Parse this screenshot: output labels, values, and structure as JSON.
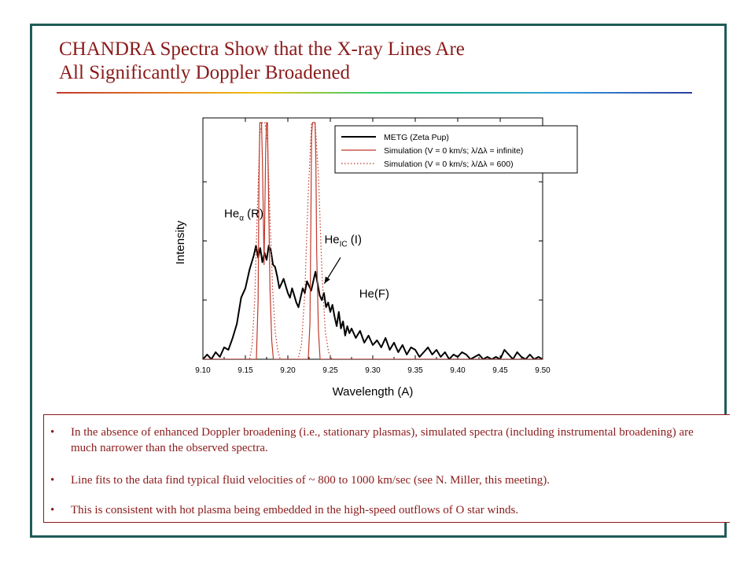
{
  "slide": {
    "title_line1": "CHANDRA Spectra Show that the X-ray Lines Are",
    "title_line2": "All Significantly Doppler Broadened",
    "bullets": [
      "In the absence of enhanced Doppler broadening (i.e., stationary plasmas), simulated spectra (including instrumental broadening) are much narrower than the observed spectra.",
      "Line fits to the data find typical fluid velocities of ~ 800 to 1000 km/sec (see N. Miller, this meeting).",
      "This is consistent with hot plasma being embedded in the high-speed outflows of O star winds."
    ],
    "bullet_marker": "•",
    "colors": {
      "title": "#8b1a1a",
      "frame": "#1f5c57",
      "bullet_text": "#8b1a1a"
    }
  },
  "chart_data": {
    "type": "line",
    "xlabel": "Wavelength (A)",
    "ylabel": "Intensity",
    "xlim": [
      9.1,
      9.5
    ],
    "ylim": [
      0,
      1
    ],
    "xticks": [
      "9.10",
      "9.15",
      "9.20",
      "9.25",
      "9.30",
      "9.35",
      "9.40",
      "9.45",
      "9.50"
    ],
    "legend_position": "top-right",
    "series": [
      {
        "name": "METG (Zeta Pup)",
        "color": "#000000",
        "style": "solid",
        "x": [
          9.1,
          9.105,
          9.11,
          9.115,
          9.12,
          9.125,
          9.13,
          9.135,
          9.14,
          9.145,
          9.15,
          9.155,
          9.16,
          9.1625,
          9.165,
          9.1675,
          9.17,
          9.1725,
          9.175,
          9.1775,
          9.18,
          9.1825,
          9.185,
          9.1875,
          9.19,
          9.1925,
          9.195,
          9.1975,
          9.2,
          9.2025,
          9.205,
          9.2075,
          9.21,
          9.2125,
          9.215,
          9.2175,
          9.22,
          9.2225,
          9.225,
          9.2275,
          9.23,
          9.2325,
          9.235,
          9.2375,
          9.24,
          9.2425,
          9.245,
          9.2475,
          9.25,
          9.2525,
          9.255,
          9.2575,
          9.26,
          9.2625,
          9.265,
          9.2675,
          9.27,
          9.2725,
          9.275,
          9.28,
          9.285,
          9.29,
          9.295,
          9.3,
          9.305,
          9.31,
          9.315,
          9.32,
          9.325,
          9.33,
          9.335,
          9.34,
          9.345,
          9.35,
          9.355,
          9.36,
          9.365,
          9.37,
          9.375,
          9.38,
          9.385,
          9.39,
          9.395,
          9.4,
          9.405,
          9.41,
          9.415,
          9.42,
          9.425,
          9.43,
          9.435,
          9.44,
          9.445,
          9.45,
          9.455,
          9.46,
          9.465,
          9.47,
          9.475,
          9.48,
          9.485,
          9.49,
          9.495,
          9.5
        ],
        "values": [
          0.0,
          0.02,
          0.0,
          0.03,
          0.01,
          0.05,
          0.04,
          0.09,
          0.15,
          0.26,
          0.3,
          0.38,
          0.44,
          0.48,
          0.43,
          0.47,
          0.41,
          0.45,
          0.42,
          0.48,
          0.46,
          0.4,
          0.39,
          0.35,
          0.3,
          0.32,
          0.34,
          0.31,
          0.28,
          0.26,
          0.3,
          0.27,
          0.24,
          0.22,
          0.26,
          0.3,
          0.28,
          0.33,
          0.31,
          0.29,
          0.33,
          0.37,
          0.32,
          0.27,
          0.25,
          0.28,
          0.22,
          0.24,
          0.2,
          0.23,
          0.18,
          0.14,
          0.2,
          0.13,
          0.16,
          0.1,
          0.14,
          0.11,
          0.13,
          0.09,
          0.12,
          0.07,
          0.1,
          0.06,
          0.08,
          0.05,
          0.09,
          0.04,
          0.07,
          0.03,
          0.06,
          0.02,
          0.05,
          0.04,
          0.01,
          0.03,
          0.05,
          0.02,
          0.04,
          0.01,
          0.03,
          0.0,
          0.02,
          0.01,
          0.03,
          0.02,
          0.0,
          0.01,
          0.02,
          0.0,
          0.01,
          0.0,
          0.01,
          0.0,
          0.04,
          0.02,
          0.0,
          0.03,
          0.01,
          0.0,
          0.02,
          0.0,
          0.01,
          0.0
        ]
      },
      {
        "name": "Simulation (V = 0 km/s;  λ/Δλ = infinite)",
        "color": "#c0392b",
        "style": "solid",
        "x": [
          9.1,
          9.163,
          9.165,
          9.166,
          9.167,
          9.169,
          9.17,
          9.172,
          9.174,
          9.175,
          9.176,
          9.177,
          9.179,
          9.181,
          9.183,
          9.224,
          9.226,
          9.227,
          9.228,
          9.229,
          9.23,
          9.231,
          9.232,
          9.233,
          9.234,
          9.236,
          9.238,
          9.5
        ],
        "values": [
          0.0,
          0.0,
          0.25,
          0.75,
          1.0,
          1.0,
          0.85,
          0.4,
          0.9,
          1.0,
          1.0,
          0.75,
          0.3,
          0.08,
          0.0,
          0.0,
          0.15,
          0.55,
          0.95,
          1.0,
          1.0,
          1.0,
          1.0,
          0.85,
          0.45,
          0.12,
          0.0,
          0.0
        ]
      },
      {
        "name": "Simulation (V = 0 km/s;  λ/Δλ = 600)",
        "color": "#c0392b",
        "style": "dotted",
        "x": [
          9.1,
          9.155,
          9.158,
          9.161,
          9.164,
          9.167,
          9.17,
          9.173,
          9.176,
          9.179,
          9.182,
          9.185,
          9.188,
          9.191,
          9.212,
          9.216,
          9.22,
          9.224,
          9.228,
          9.232,
          9.236,
          9.24,
          9.244,
          9.248,
          9.252,
          9.5
        ],
        "values": [
          0.0,
          0.0,
          0.06,
          0.25,
          0.62,
          0.95,
          1.0,
          1.0,
          0.92,
          0.6,
          0.3,
          0.12,
          0.04,
          0.0,
          0.0,
          0.06,
          0.28,
          0.7,
          1.0,
          1.0,
          0.78,
          0.38,
          0.12,
          0.03,
          0.0,
          0.0
        ]
      }
    ],
    "annotations": [
      {
        "text": "He",
        "sub": "α",
        "suffix": " (R)",
        "x": 9.125,
        "y": 0.6
      },
      {
        "text": "He",
        "sub": "IC",
        "suffix": " (I)",
        "x": 9.243,
        "y": 0.49
      },
      {
        "text": "He(F)",
        "sub": "",
        "suffix": "",
        "x": 9.284,
        "y": 0.26
      }
    ],
    "arrow": {
      "from": [
        9.262,
        0.43
      ],
      "to": [
        9.243,
        0.32
      ]
    }
  }
}
